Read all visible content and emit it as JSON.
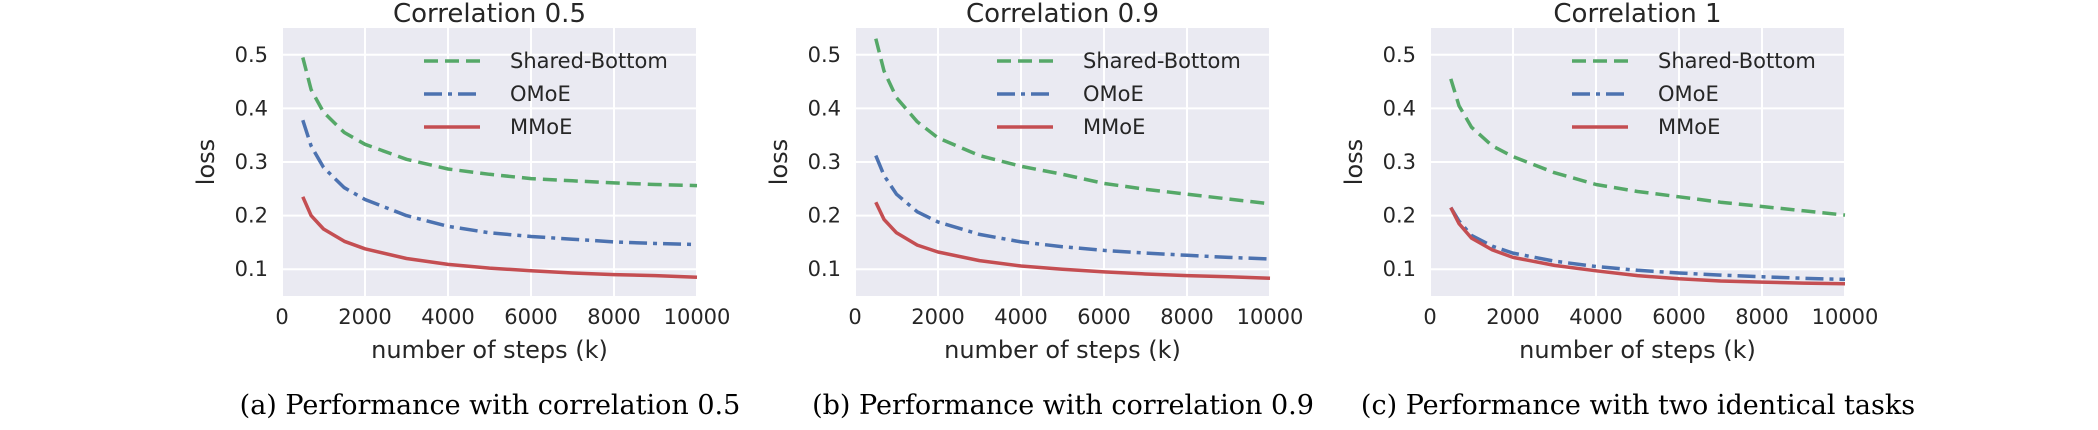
{
  "chart_data": [
    {
      "type": "line",
      "title": "Correlation 0.5",
      "xlabel": "number of steps (k)",
      "ylabel": "loss",
      "xlim": [
        0,
        10000
      ],
      "ylim": [
        0.05,
        0.55
      ],
      "xticks": [
        0,
        2000,
        4000,
        6000,
        8000,
        10000
      ],
      "yticks": [
        0.1,
        0.2,
        0.3,
        0.4,
        0.5
      ],
      "grid": true,
      "legend_position": "top-right",
      "caption": "(a) Performance with correlation 0.5",
      "x": [
        500,
        700,
        1000,
        1500,
        2000,
        3000,
        4000,
        5000,
        6000,
        7000,
        8000,
        9000,
        10000
      ],
      "series": [
        {
          "name": "Shared-Bottom",
          "style": "dashed",
          "color": "#55a868",
          "values": [
            0.495,
            0.435,
            0.393,
            0.355,
            0.333,
            0.305,
            0.287,
            0.277,
            0.269,
            0.265,
            0.261,
            0.258,
            0.256
          ]
        },
        {
          "name": "OMoE",
          "style": "dashdot",
          "color": "#4c72b0",
          "values": [
            0.378,
            0.33,
            0.29,
            0.252,
            0.23,
            0.2,
            0.18,
            0.168,
            0.161,
            0.156,
            0.151,
            0.148,
            0.146
          ]
        },
        {
          "name": "MMoE",
          "style": "solid",
          "color": "#c44e52",
          "values": [
            0.235,
            0.2,
            0.175,
            0.152,
            0.138,
            0.12,
            0.109,
            0.102,
            0.097,
            0.093,
            0.09,
            0.088,
            0.085
          ]
        }
      ]
    },
    {
      "type": "line",
      "title": "Correlation 0.9",
      "xlabel": "number of steps (k)",
      "ylabel": "loss",
      "xlim": [
        0,
        10000
      ],
      "ylim": [
        0.05,
        0.55
      ],
      "xticks": [
        0,
        2000,
        4000,
        6000,
        8000,
        10000
      ],
      "yticks": [
        0.1,
        0.2,
        0.3,
        0.4,
        0.5
      ],
      "grid": true,
      "legend_position": "top-right",
      "caption": "(b) Performance with correlation 0.9",
      "x": [
        500,
        700,
        1000,
        1500,
        2000,
        3000,
        4000,
        5000,
        6000,
        7000,
        8000,
        9000,
        10000
      ],
      "series": [
        {
          "name": "Shared-Bottom",
          "style": "dashed",
          "color": "#55a868",
          "values": [
            0.53,
            0.47,
            0.42,
            0.375,
            0.345,
            0.312,
            0.292,
            0.277,
            0.26,
            0.249,
            0.24,
            0.231,
            0.222
          ]
        },
        {
          "name": "OMoE",
          "style": "dashdot",
          "color": "#4c72b0",
          "values": [
            0.312,
            0.275,
            0.24,
            0.207,
            0.188,
            0.165,
            0.151,
            0.142,
            0.135,
            0.13,
            0.126,
            0.122,
            0.119
          ]
        },
        {
          "name": "MMoE",
          "style": "solid",
          "color": "#c44e52",
          "values": [
            0.225,
            0.193,
            0.168,
            0.145,
            0.132,
            0.116,
            0.106,
            0.1,
            0.095,
            0.091,
            0.088,
            0.086,
            0.083
          ]
        }
      ]
    },
    {
      "type": "line",
      "title": "Correlation 1",
      "xlabel": "number of steps (k)",
      "ylabel": "loss",
      "xlim": [
        0,
        10000
      ],
      "ylim": [
        0.05,
        0.55
      ],
      "xticks": [
        0,
        2000,
        4000,
        6000,
        8000,
        10000
      ],
      "yticks": [
        0.1,
        0.2,
        0.3,
        0.4,
        0.5
      ],
      "grid": true,
      "legend_position": "top-right",
      "caption": "(c) Performance with two identical tasks",
      "x": [
        500,
        700,
        1000,
        1500,
        2000,
        3000,
        4000,
        5000,
        6000,
        7000,
        8000,
        9000,
        10000
      ],
      "series": [
        {
          "name": "Shared-Bottom",
          "style": "dashed",
          "color": "#55a868",
          "values": [
            0.455,
            0.405,
            0.365,
            0.33,
            0.31,
            0.28,
            0.258,
            0.245,
            0.235,
            0.225,
            0.217,
            0.209,
            0.201
          ]
        },
        {
          "name": "OMoE",
          "style": "dashdot",
          "color": "#4c72b0",
          "values": [
            0.215,
            0.19,
            0.163,
            0.143,
            0.13,
            0.115,
            0.105,
            0.098,
            0.093,
            0.089,
            0.086,
            0.083,
            0.081
          ]
        },
        {
          "name": "MMoE",
          "style": "solid",
          "color": "#c44e52",
          "values": [
            0.215,
            0.185,
            0.158,
            0.136,
            0.122,
            0.107,
            0.097,
            0.088,
            0.082,
            0.078,
            0.076,
            0.074,
            0.073
          ]
        }
      ]
    }
  ]
}
